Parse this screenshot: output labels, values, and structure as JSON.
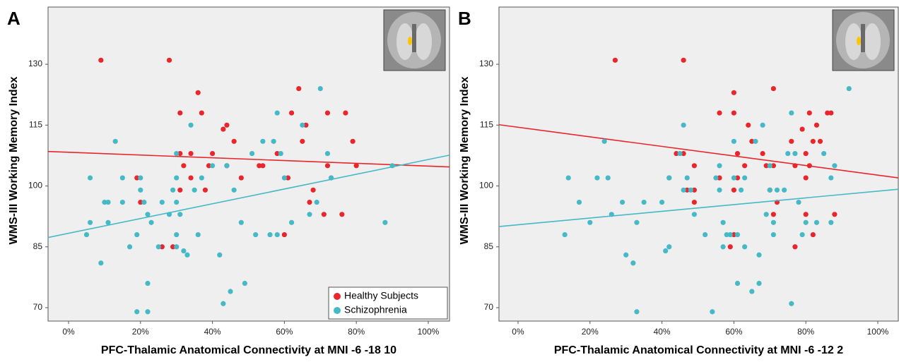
{
  "chart_data": [
    {
      "type": "scatter",
      "label": "A",
      "x_label": "PFC-Thalamic Anatomical Connectivity at MNI -6 -18 10",
      "y_label": "WMS-III Working Memory Index",
      "xlim": [
        -5.7,
        105.9
      ],
      "ylim": [
        66.7,
        144.1
      ],
      "xticks": [
        {
          "value": 0,
          "label": "0%"
        },
        {
          "value": 20,
          "label": "20%"
        },
        {
          "value": 40,
          "label": "40%"
        },
        {
          "value": 60,
          "label": "60%"
        },
        {
          "value": 80,
          "label": "80%"
        },
        {
          "value": 100,
          "label": "100%"
        }
      ],
      "yticks": [
        70,
        85,
        100,
        115,
        130
      ],
      "legend": "lower right",
      "series": [
        {
          "name": "Healthy Subjects",
          "color": "#e8262b",
          "x": [
            9,
            28,
            36,
            31,
            37,
            44,
            43,
            46,
            31,
            34,
            40,
            32,
            39,
            44,
            53,
            54,
            19,
            34,
            48,
            31,
            38,
            20,
            26,
            29,
            58,
            62,
            64,
            65,
            66,
            61,
            60,
            68,
            67,
            71,
            72,
            72,
            73,
            76,
            77,
            79,
            80
          ],
          "y": [
            131,
            131,
            123,
            118,
            118,
            115,
            114,
            111,
            108,
            108,
            108,
            105,
            105,
            105,
            105,
            105,
            102,
            102,
            102,
            99,
            99,
            96,
            85,
            85,
            108,
            118,
            124,
            111,
            115,
            102,
            88,
            99,
            96,
            93,
            118,
            105,
            102,
            93,
            118,
            111,
            105
          ],
          "fit": {
            "x": [
              -5.7,
              105.9
            ],
            "y": [
              108.5,
              104.7
            ]
          }
        },
        {
          "name": "Schizophrenia",
          "color": "#45b9c6",
          "x": [
            5,
            6,
            6,
            9,
            10,
            11,
            11,
            13,
            15,
            15,
            17,
            19,
            19,
            20,
            20,
            21,
            22,
            22,
            22,
            23,
            25,
            26,
            28,
            29,
            30,
            30,
            30,
            30,
            30,
            31,
            32,
            33,
            34,
            35,
            36,
            37,
            40,
            42,
            43,
            44,
            45,
            46,
            48,
            49,
            51,
            52,
            54,
            56,
            57,
            58,
            58,
            59,
            60,
            62,
            65,
            67,
            69,
            70,
            72,
            73,
            88,
            90
          ],
          "y": [
            88,
            102,
            91,
            81,
            96,
            96,
            91,
            111,
            102,
            96,
            85,
            69,
            88,
            102,
            99,
            96,
            76,
            69,
            93,
            91,
            85,
            96,
            93,
            99,
            88,
            102,
            108,
            96,
            85,
            93,
            84,
            83,
            115,
            99,
            88,
            102,
            105,
            83,
            71,
            105,
            74,
            99,
            91,
            76,
            108,
            88,
            111,
            88,
            111,
            88,
            118,
            108,
            102,
            91,
            115,
            93,
            96,
            124,
            108,
            102,
            91,
            105
          ],
          "fit": {
            "x": [
              -5.7,
              105.9
            ],
            "y": [
              87.3,
              107.6
            ]
          }
        }
      ]
    },
    {
      "type": "scatter",
      "label": "B",
      "x_label": "PFC-Thalamic Anatomical Connectivity at MNI -6 -12 2",
      "y_label": "WMS-III Working Memory Index",
      "xlim": [
        -5.3,
        105.7
      ],
      "ylim": [
        66.7,
        144.1
      ],
      "xticks": [
        {
          "value": 0,
          "label": "0%"
        },
        {
          "value": 20,
          "label": "20%"
        },
        {
          "value": 40,
          "label": "40%"
        },
        {
          "value": 60,
          "label": "60%"
        },
        {
          "value": 80,
          "label": "80%"
        },
        {
          "value": 100,
          "label": "100%"
        }
      ],
      "yticks": [
        70,
        85,
        100,
        115,
        130
      ],
      "series": [
        {
          "color": "#e8262b",
          "x": [
            27,
            46,
            60,
            56,
            60,
            64,
            65,
            61,
            68,
            44,
            46,
            42,
            49,
            47,
            49,
            49,
            56,
            61,
            63,
            69,
            71,
            71,
            60,
            59,
            60,
            70,
            71,
            72,
            77,
            77,
            76,
            79,
            81,
            80,
            81,
            80,
            80,
            82,
            83,
            82,
            84,
            86,
            87,
            88
          ],
          "y": [
            131,
            131,
            123,
            118,
            118,
            115,
            111,
            108,
            108,
            108,
            108,
            102,
            105,
            99,
            99,
            96,
            102,
            102,
            105,
            105,
            105,
            124,
            88,
            85,
            99,
            99,
            93,
            96,
            85,
            105,
            111,
            114,
            118,
            108,
            105,
            102,
            93,
            111,
            115,
            88,
            111,
            118,
            118,
            93
          ],
          "fit": {
            "x": [
              -5.3,
              105.7
            ],
            "y": [
              115.1,
              102.0
            ]
          }
        },
        {
          "color": "#45b9c6",
          "x": [
            13,
            14,
            17,
            20,
            22,
            24,
            25,
            26,
            29,
            30,
            32,
            33,
            33,
            35,
            40,
            41,
            42,
            42,
            45,
            46,
            46,
            47,
            48,
            49,
            52,
            54,
            55,
            56,
            56,
            57,
            57,
            58,
            59,
            60,
            60,
            61,
            61,
            62,
            63,
            63,
            65,
            66,
            67,
            67,
            68,
            69,
            70,
            70,
            71,
            71,
            72,
            74,
            75,
            76,
            76,
            77,
            78,
            79,
            80,
            83,
            85,
            87,
            87,
            88,
            92
          ],
          "y": [
            88,
            102,
            96,
            91,
            102,
            111,
            102,
            93,
            96,
            83,
            81,
            91,
            69,
            96,
            96,
            84,
            85,
            102,
            108,
            99,
            115,
            102,
            99,
            93,
            88,
            69,
            102,
            105,
            99,
            91,
            85,
            88,
            88,
            102,
            111,
            88,
            76,
            99,
            85,
            102,
            74,
            111,
            83,
            76,
            115,
            93,
            99,
            105,
            88,
            91,
            99,
            99,
            108,
            118,
            71,
            108,
            96,
            88,
            91,
            91,
            108,
            102,
            91,
            105,
            124
          ],
          "fit": {
            "x": [
              -5.3,
              105.7
            ],
            "y": [
              90.0,
              99.2
            ]
          }
        }
      ]
    }
  ]
}
